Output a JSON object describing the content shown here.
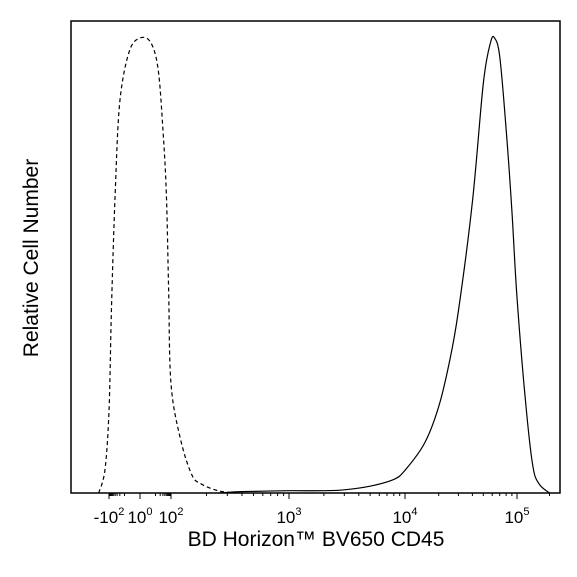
{
  "chart_data": {
    "type": "area",
    "title": "",
    "xlabel": "BD Horizon™ BV650 CD45",
    "ylabel": "Relative Cell Number",
    "x_scale": "biexponential",
    "xlim": [
      -400,
      250000
    ],
    "ylim": [
      0,
      1
    ],
    "grid": false,
    "legend": "none",
    "x_ticks": [
      {
        "value": -100,
        "base": "-10",
        "exp": "2"
      },
      {
        "value": 1,
        "base": "10",
        "exp": "0"
      },
      {
        "value": 100,
        "base": "10",
        "exp": "2"
      },
      {
        "value": 1000,
        "base": "10",
        "exp": "3"
      },
      {
        "value": 10000,
        "base": "10",
        "exp": "4"
      },
      {
        "value": 100000,
        "base": "10",
        "exp": "5"
      }
    ],
    "series": [
      {
        "style": "dashed",
        "color": "#000000",
        "x": [
          -200,
          -140,
          -100,
          -70,
          -40,
          -20,
          -5,
          0,
          5,
          15,
          30,
          50,
          70,
          100,
          120,
          150,
          180,
          250,
          350
        ],
        "y": [
          0.0,
          0.05,
          0.18,
          0.4,
          0.66,
          0.86,
          0.97,
          1.0,
          0.99,
          0.93,
          0.8,
          0.66,
          0.45,
          0.24,
          0.12,
          0.04,
          0.02,
          0.005,
          0.0
        ]
      },
      {
        "style": "solid",
        "color": "#000000",
        "x": [
          250,
          400,
          1000,
          2000,
          3000,
          5000,
          8000,
          10000,
          15000,
          20000,
          25000,
          30000,
          40000,
          50000,
          58000,
          63000,
          70000,
          80000,
          90000,
          100000,
          120000,
          140000,
          160000,
          200000
        ],
        "y": [
          0.0,
          0.003,
          0.005,
          0.005,
          0.007,
          0.015,
          0.03,
          0.05,
          0.11,
          0.19,
          0.29,
          0.4,
          0.64,
          0.9,
          0.99,
          1.0,
          0.96,
          0.8,
          0.62,
          0.43,
          0.2,
          0.06,
          0.02,
          0.0
        ]
      }
    ]
  }
}
